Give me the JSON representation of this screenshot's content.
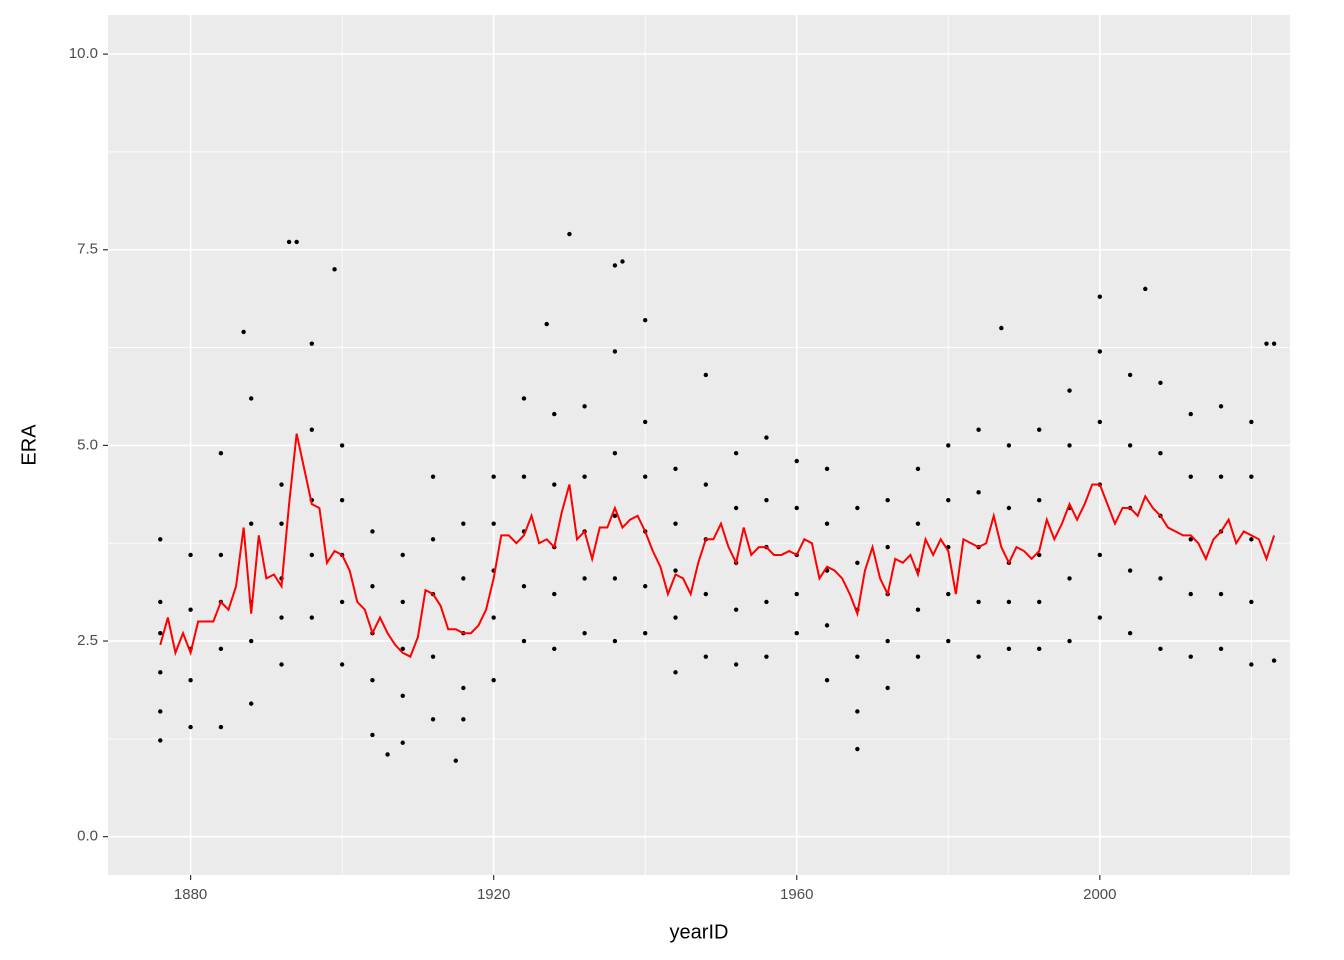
{
  "chart_data": {
    "type": "scatter",
    "x_label": "yearID",
    "y_label": "ERA",
    "xlim": [
      1869.1,
      2025.1
    ],
    "ylim": [
      -0.49,
      10.5
    ],
    "xticks": [
      1880,
      1920,
      1960,
      2000
    ],
    "xminor": [
      1900,
      1940,
      1980,
      2020
    ],
    "yticks": [
      {
        "value": 0,
        "label": "0.0"
      },
      2.5,
      {
        "value": 5,
        "label": "5.0"
      },
      7.5,
      {
        "value": 10,
        "label": "10.0"
      }
    ],
    "yminor": [
      1.25,
      3.75,
      6.25,
      8.75
    ],
    "grid": true,
    "series": [
      {
        "type": "scatter",
        "color": "#000000",
        "x": [
          1876,
          1876,
          1876,
          1876,
          1876,
          1880,
          1880,
          1880,
          1880,
          1880,
          1884,
          1884,
          1884,
          1884,
          1884,
          1888,
          1888,
          1888,
          1888,
          1888,
          1892,
          1892,
          1892,
          1892,
          1892,
          1896,
          1896,
          1896,
          1896,
          1896,
          1900,
          1900,
          1900,
          1900,
          1900,
          1904,
          1904,
          1904,
          1904,
          1904,
          1908,
          1908,
          1908,
          1908,
          1908,
          1912,
          1912,
          1912,
          1912,
          1912,
          1916,
          1916,
          1916,
          1916,
          1916,
          1920,
          1920,
          1920,
          1920,
          1920,
          1924,
          1924,
          1924,
          1924,
          1924,
          1928,
          1928,
          1928,
          1928,
          1928,
          1932,
          1932,
          1932,
          1932,
          1932,
          1936,
          1936,
          1936,
          1936,
          1936,
          1940,
          1940,
          1940,
          1940,
          1940,
          1944,
          1944,
          1944,
          1944,
          1944,
          1948,
          1948,
          1948,
          1948,
          1948,
          1952,
          1952,
          1952,
          1952,
          1952,
          1956,
          1956,
          1956,
          1956,
          1956,
          1960,
          1960,
          1960,
          1960,
          1960,
          1964,
          1964,
          1964,
          1964,
          1964,
          1968,
          1968,
          1968,
          1968,
          1968,
          1972,
          1972,
          1972,
          1972,
          1972,
          1976,
          1976,
          1976,
          1976,
          1976,
          1980,
          1980,
          1980,
          1980,
          1980,
          1984,
          1984,
          1984,
          1984,
          1984,
          1988,
          1988,
          1988,
          1988,
          1988,
          1992,
          1992,
          1992,
          1992,
          1992,
          1996,
          1996,
          1996,
          1996,
          1996,
          2000,
          2000,
          2000,
          2000,
          2000,
          2004,
          2004,
          2004,
          2004,
          2004,
          2008,
          2008,
          2008,
          2008,
          2008,
          2012,
          2012,
          2012,
          2012,
          2012,
          2016,
          2016,
          2016,
          2016,
          2016,
          2020,
          2020,
          2020,
          2020,
          2020,
          1876,
          1887,
          1893,
          1894,
          1899,
          1906,
          1915,
          1927,
          1930,
          1936,
          1937,
          1940,
          1968,
          1987,
          2000,
          2006,
          2022,
          2023,
          2023
        ],
        "values": [
          1.6,
          2.1,
          2.6,
          3.0,
          3.8,
          1.4,
          2.0,
          2.4,
          2.9,
          3.6,
          1.4,
          2.4,
          3.0,
          3.6,
          4.9,
          1.7,
          2.5,
          3.0,
          4.0,
          5.6,
          2.2,
          2.8,
          3.3,
          4.0,
          4.5,
          2.8,
          3.6,
          4.3,
          5.2,
          6.3,
          2.2,
          3.0,
          3.6,
          4.3,
          5.0,
          1.3,
          2.0,
          2.6,
          3.2,
          3.9,
          1.2,
          1.8,
          2.4,
          3.0,
          3.6,
          1.5,
          2.3,
          3.1,
          3.8,
          4.6,
          1.9,
          2.6,
          3.3,
          4.0,
          1.5,
          2.0,
          2.8,
          3.4,
          4.0,
          4.6,
          2.5,
          3.2,
          3.9,
          4.6,
          5.6,
          2.4,
          3.1,
          3.7,
          4.5,
          5.4,
          2.6,
          3.3,
          3.9,
          4.6,
          5.5,
          2.5,
          3.3,
          4.1,
          4.9,
          6.2,
          2.6,
          3.2,
          3.9,
          4.6,
          5.3,
          2.1,
          2.8,
          3.4,
          4.0,
          4.7,
          2.3,
          3.1,
          3.8,
          4.5,
          5.9,
          2.2,
          2.9,
          3.5,
          4.2,
          4.9,
          2.3,
          3.0,
          3.7,
          4.3,
          5.1,
          2.6,
          3.1,
          3.6,
          4.2,
          4.8,
          2.0,
          2.7,
          3.4,
          4.0,
          4.7,
          1.6,
          2.3,
          2.9,
          3.5,
          4.2,
          1.9,
          2.5,
          3.1,
          3.7,
          4.3,
          2.3,
          2.9,
          3.4,
          4.0,
          4.7,
          2.5,
          3.1,
          3.7,
          4.3,
          5.0,
          2.3,
          3.0,
          3.7,
          4.4,
          5.2,
          2.4,
          3.0,
          3.5,
          4.2,
          5.0,
          2.4,
          3.0,
          3.6,
          4.3,
          5.2,
          2.5,
          3.3,
          4.2,
          5.0,
          5.7,
          2.8,
          3.6,
          4.5,
          5.3,
          6.2,
          2.6,
          3.4,
          4.2,
          5.0,
          5.9,
          2.4,
          3.3,
          4.1,
          4.9,
          5.8,
          2.3,
          3.1,
          3.8,
          4.6,
          5.4,
          2.4,
          3.1,
          3.9,
          4.6,
          5.5,
          2.2,
          3.0,
          3.8,
          4.6,
          5.3,
          1.23,
          6.45,
          7.6,
          7.6,
          7.25,
          1.05,
          0.97,
          6.55,
          7.7,
          7.3,
          7.35,
          6.6,
          1.12,
          6.5,
          6.9,
          7.0,
          6.3,
          6.3,
          2.25
        ]
      },
      {
        "type": "line",
        "color": "#ff0000",
        "x": [
          1876,
          1877,
          1878,
          1879,
          1880,
          1881,
          1882,
          1883,
          1884,
          1885,
          1886,
          1887,
          1888,
          1889,
          1890,
          1891,
          1892,
          1893,
          1894,
          1895,
          1896,
          1897,
          1898,
          1899,
          1900,
          1901,
          1902,
          1903,
          1904,
          1905,
          1906,
          1907,
          1908,
          1909,
          1910,
          1911,
          1912,
          1913,
          1914,
          1915,
          1916,
          1917,
          1918,
          1919,
          1920,
          1921,
          1922,
          1923,
          1924,
          1925,
          1926,
          1927,
          1928,
          1929,
          1930,
          1931,
          1932,
          1933,
          1934,
          1935,
          1936,
          1937,
          1938,
          1939,
          1940,
          1941,
          1942,
          1943,
          1944,
          1945,
          1946,
          1947,
          1948,
          1949,
          1950,
          1951,
          1952,
          1953,
          1954,
          1955,
          1956,
          1957,
          1958,
          1959,
          1960,
          1961,
          1962,
          1963,
          1964,
          1965,
          1966,
          1967,
          1968,
          1969,
          1970,
          1971,
          1972,
          1973,
          1974,
          1975,
          1976,
          1977,
          1978,
          1979,
          1980,
          1981,
          1982,
          1983,
          1984,
          1985,
          1986,
          1987,
          1988,
          1989,
          1990,
          1991,
          1992,
          1993,
          1994,
          1995,
          1996,
          1997,
          1998,
          1999,
          2000,
          2001,
          2002,
          2003,
          2004,
          2005,
          2006,
          2007,
          2008,
          2009,
          2010,
          2011,
          2012,
          2013,
          2014,
          2015,
          2016,
          2017,
          2018,
          2019,
          2020,
          2021,
          2022,
          2023
        ],
        "values": [
          2.45,
          2.8,
          2.35,
          2.6,
          2.35,
          2.75,
          2.75,
          2.75,
          3.0,
          2.9,
          3.2,
          3.95,
          2.85,
          3.85,
          3.3,
          3.35,
          3.2,
          4.25,
          5.15,
          4.7,
          4.25,
          4.2,
          3.5,
          3.65,
          3.6,
          3.4,
          3.0,
          2.9,
          2.6,
          2.8,
          2.6,
          2.45,
          2.35,
          2.3,
          2.55,
          3.15,
          3.1,
          2.95,
          2.65,
          2.65,
          2.6,
          2.6,
          2.7,
          2.9,
          3.3,
          3.85,
          3.85,
          3.75,
          3.85,
          4.1,
          3.75,
          3.8,
          3.7,
          4.15,
          4.5,
          3.8,
          3.9,
          3.55,
          3.95,
          3.95,
          4.2,
          3.95,
          4.05,
          4.1,
          3.9,
          3.65,
          3.45,
          3.1,
          3.35,
          3.3,
          3.1,
          3.5,
          3.8,
          3.8,
          4.0,
          3.7,
          3.5,
          3.95,
          3.6,
          3.7,
          3.7,
          3.6,
          3.6,
          3.65,
          3.6,
          3.8,
          3.75,
          3.3,
          3.45,
          3.4,
          3.3,
          3.1,
          2.85,
          3.4,
          3.7,
          3.3,
          3.1,
          3.55,
          3.5,
          3.6,
          3.35,
          3.8,
          3.6,
          3.8,
          3.65,
          3.1,
          3.8,
          3.75,
          3.7,
          3.75,
          4.1,
          3.7,
          3.5,
          3.7,
          3.65,
          3.55,
          3.65,
          4.05,
          3.8,
          4.0,
          4.25,
          4.05,
          4.25,
          4.5,
          4.5,
          4.25,
          4.0,
          4.2,
          4.2,
          4.1,
          4.35,
          4.2,
          4.1,
          3.95,
          3.9,
          3.85,
          3.85,
          3.75,
          3.55,
          3.8,
          3.9,
          4.05,
          3.75,
          3.9,
          3.85,
          3.8,
          3.55,
          3.85
        ]
      }
    ]
  }
}
